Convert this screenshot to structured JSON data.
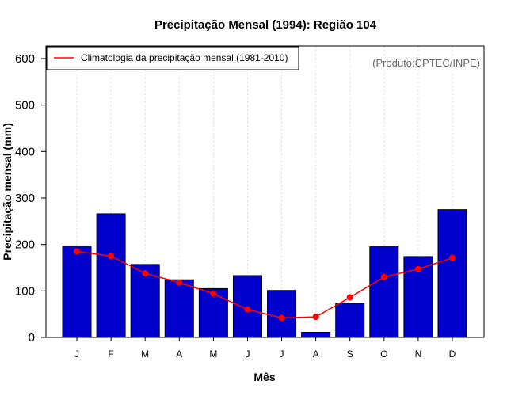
{
  "chart_data": {
    "type": "bar",
    "title": "Precipitação Mensal (1994): Região 104",
    "xlabel": "Mês",
    "ylabel": "Precipitação mensal (mm)",
    "categories": [
      "J",
      "F",
      "M",
      "A",
      "M",
      "J",
      "J",
      "A",
      "S",
      "O",
      "N",
      "D"
    ],
    "ylim": [
      0,
      600
    ],
    "yticks": [
      0,
      100,
      200,
      300,
      400,
      500,
      600
    ],
    "grid": "vertical-dotted",
    "series": [
      {
        "name": "Precipitação mensal 1994",
        "type": "bar",
        "color": "#0000cc",
        "values": [
          197,
          266,
          157,
          124,
          105,
          133,
          101,
          11,
          73,
          195,
          174,
          275
        ]
      },
      {
        "name": "Climatologia da precipitação mensal (1981-2010)",
        "type": "line",
        "color": "#ff0000",
        "values": [
          185,
          175,
          138,
          118,
          94,
          60,
          42,
          44,
          86,
          130,
          147,
          171
        ]
      }
    ],
    "legend": {
      "position": "top-left",
      "entries": [
        "Climatologia da precipitação mensal (1981-2010)"
      ]
    },
    "annotation": "(Produto:CPTEC/INPE)"
  }
}
